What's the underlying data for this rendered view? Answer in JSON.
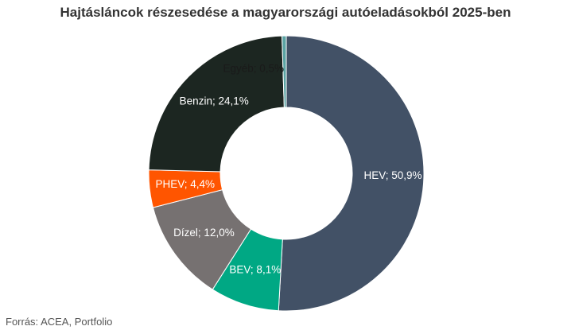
{
  "chart_data": {
    "type": "pie",
    "variant": "donut",
    "title": "Hajtásláncok részesedése a magyarországi autóeladásokból 2025-ben",
    "unit": "%",
    "start": "top, clockwise",
    "slices": [
      {
        "label": "HEV",
        "value": 50.9,
        "display": "HEV; 50,9%",
        "color": "#425166",
        "label_color": "#ffffff"
      },
      {
        "label": "BEV",
        "value": 8.1,
        "display": "BEV; 8,1%",
        "color": "#00a884",
        "label_color": "#ffffff"
      },
      {
        "label": "Dízel",
        "value": 12.0,
        "display": "Dízel; 12,0%",
        "color": "#767171",
        "label_color": "#ffffff"
      },
      {
        "label": "PHEV",
        "value": 4.4,
        "display": "PHEV; 4,4%",
        "color": "#ff5500",
        "label_color": "#ffffff"
      },
      {
        "label": "Benzin",
        "value": 24.1,
        "display": "Benzin; 24,1%",
        "color": "#1c2621",
        "label_color": "#ffffff"
      },
      {
        "label": "Egyéb",
        "value": 0.5,
        "display": "Egyéb; 0,5%",
        "color": "#5ba3a3",
        "label_color": "#1a1a1a"
      }
    ],
    "legend": "none"
  },
  "footer": {
    "source": "Forrás: ACEA, Portfolio"
  }
}
